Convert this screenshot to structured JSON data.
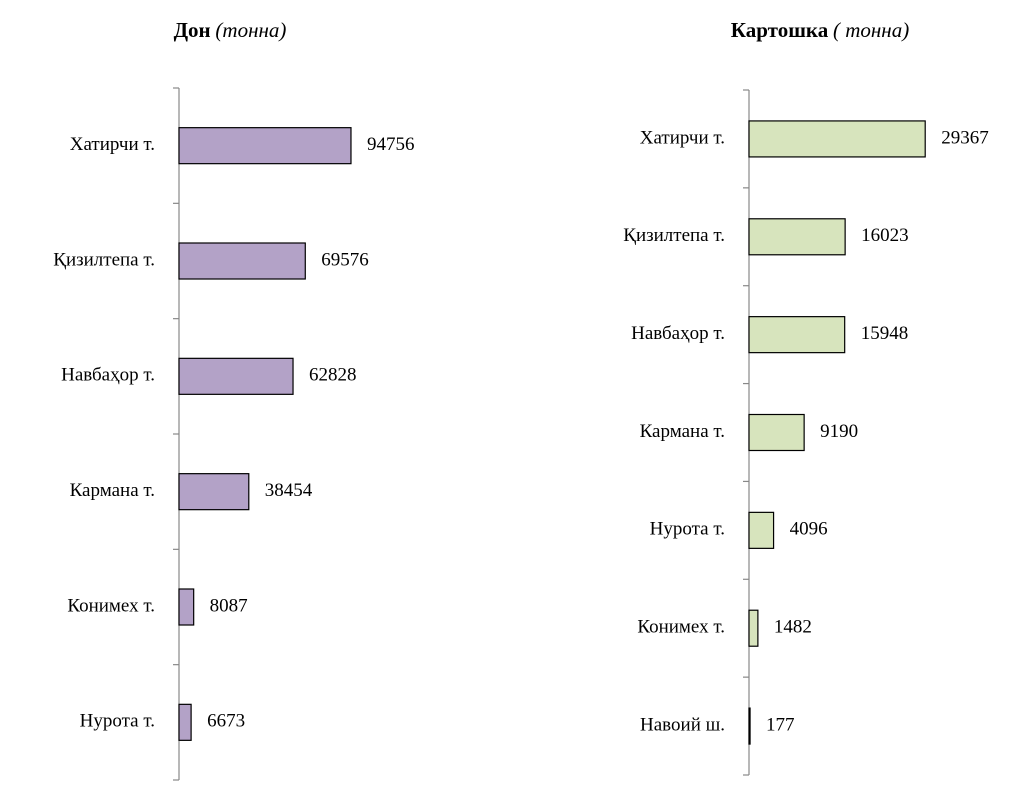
{
  "chart_data": [
    {
      "type": "barh",
      "title": "Дон",
      "unit": "(тонна)",
      "categories": [
        "Хатирчи т.",
        "Қизилтепа т.",
        "Навбаҳор т.",
        "Кармана т.",
        "Конимех т.",
        "Нурота т."
      ],
      "values": [
        94756,
        69576,
        62828,
        38454,
        8087,
        6673
      ],
      "color": "#b3a2c7",
      "xlim": [
        0,
        100000
      ]
    },
    {
      "type": "barh",
      "title": "Картошка",
      "unit": "( тонна)",
      "categories": [
        "Хатирчи т.",
        "Қизилтепа т.",
        "Навбаҳор т.",
        "Кармана т.",
        "Нурота т.",
        "Конимех т.",
        "Навоий ш."
      ],
      "values": [
        29367,
        16023,
        15948,
        9190,
        4096,
        1482,
        177
      ],
      "color": "#d7e4bd",
      "xlim": [
        0,
        30000
      ]
    }
  ]
}
